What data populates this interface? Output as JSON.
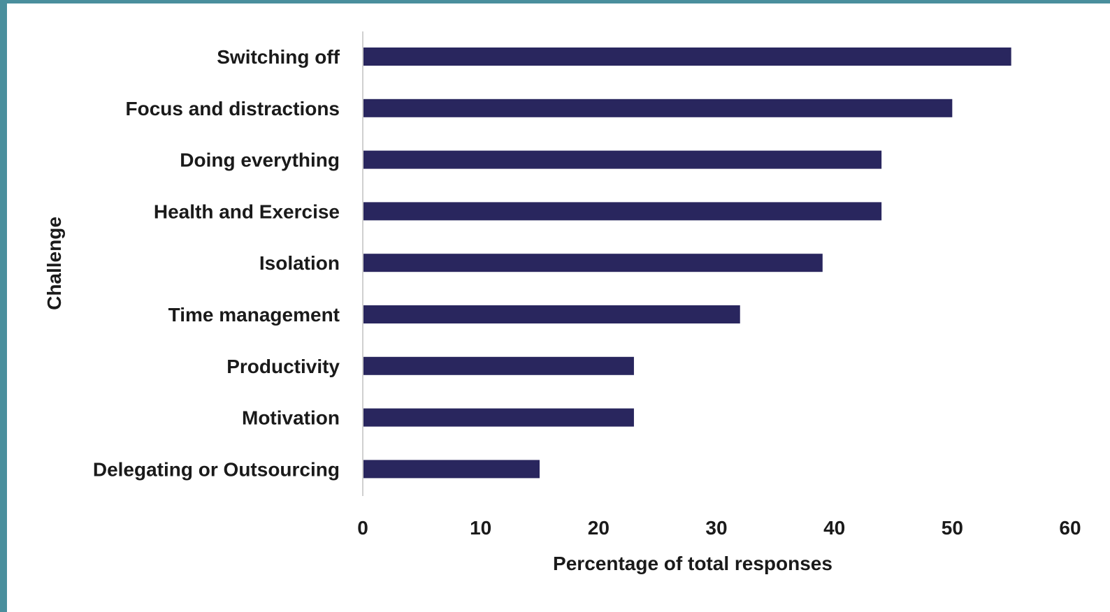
{
  "chart_data": {
    "type": "bar",
    "orientation": "horizontal",
    "categories": [
      "Switching off",
      "Focus and distractions",
      "Doing everything",
      "Health and Exercise",
      "Isolation",
      "Time management",
      "Productivity",
      "Motivation",
      "Delegating or Outsourcing"
    ],
    "values": [
      55,
      50,
      44,
      44,
      39,
      32,
      23,
      23,
      15
    ],
    "xlabel": "Percentage of total responses",
    "ylabel": "Challenge",
    "xlim": [
      0,
      60
    ],
    "xticks": [
      "0",
      "10",
      "20",
      "30",
      "40",
      "50",
      "60"
    ],
    "grid": false,
    "legend": "none",
    "colors": {
      "bar": "#29265e",
      "axis_line": "#d0d0d0",
      "text": "#1a1a1a",
      "frame": "#4a8f9d"
    }
  }
}
